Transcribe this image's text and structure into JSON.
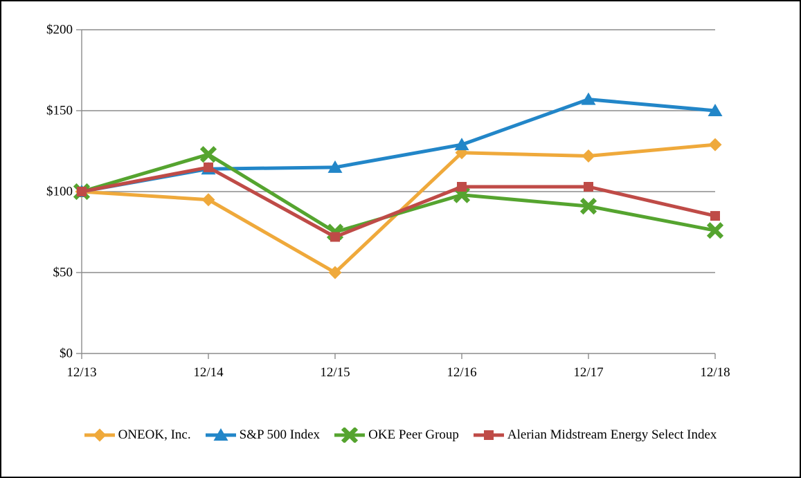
{
  "chart_data": {
    "type": "line",
    "title": "",
    "categories": [
      "12/13",
      "12/14",
      "12/15",
      "12/16",
      "12/17",
      "12/18"
    ],
    "series": [
      {
        "name": "ONEOK, Inc.",
        "marker": "diamond",
        "color": "#EFA93B",
        "values": [
          100,
          95,
          50,
          124,
          122,
          129
        ]
      },
      {
        "name": "S&P 500 Index",
        "marker": "triangle",
        "color": "#2286C8",
        "values": [
          100,
          114,
          115,
          129,
          157,
          150
        ]
      },
      {
        "name": "OKE Peer Group",
        "marker": "x",
        "color": "#55A42F",
        "values": [
          100,
          123,
          75,
          98,
          91,
          76
        ]
      },
      {
        "name": "Alerian Midstream Energy Select Index",
        "marker": "square",
        "color": "#BF4B47",
        "values": [
          100,
          115,
          72,
          103,
          103,
          85
        ]
      }
    ],
    "y_ticks": [
      "$200",
      "$150",
      "$100",
      "$50",
      "$0"
    ],
    "y_tick_values": [
      200,
      150,
      100,
      50,
      0
    ],
    "ylim": [
      0,
      200
    ],
    "xlabel": "",
    "ylabel": "",
    "grid": "horizontal",
    "legend_position": "bottom",
    "axis_color": "#8C8C8C",
    "grid_color": "#8C8C8C",
    "text_color": "#000000",
    "background_color": "#FFFFFF",
    "frame_color": "#000000"
  }
}
